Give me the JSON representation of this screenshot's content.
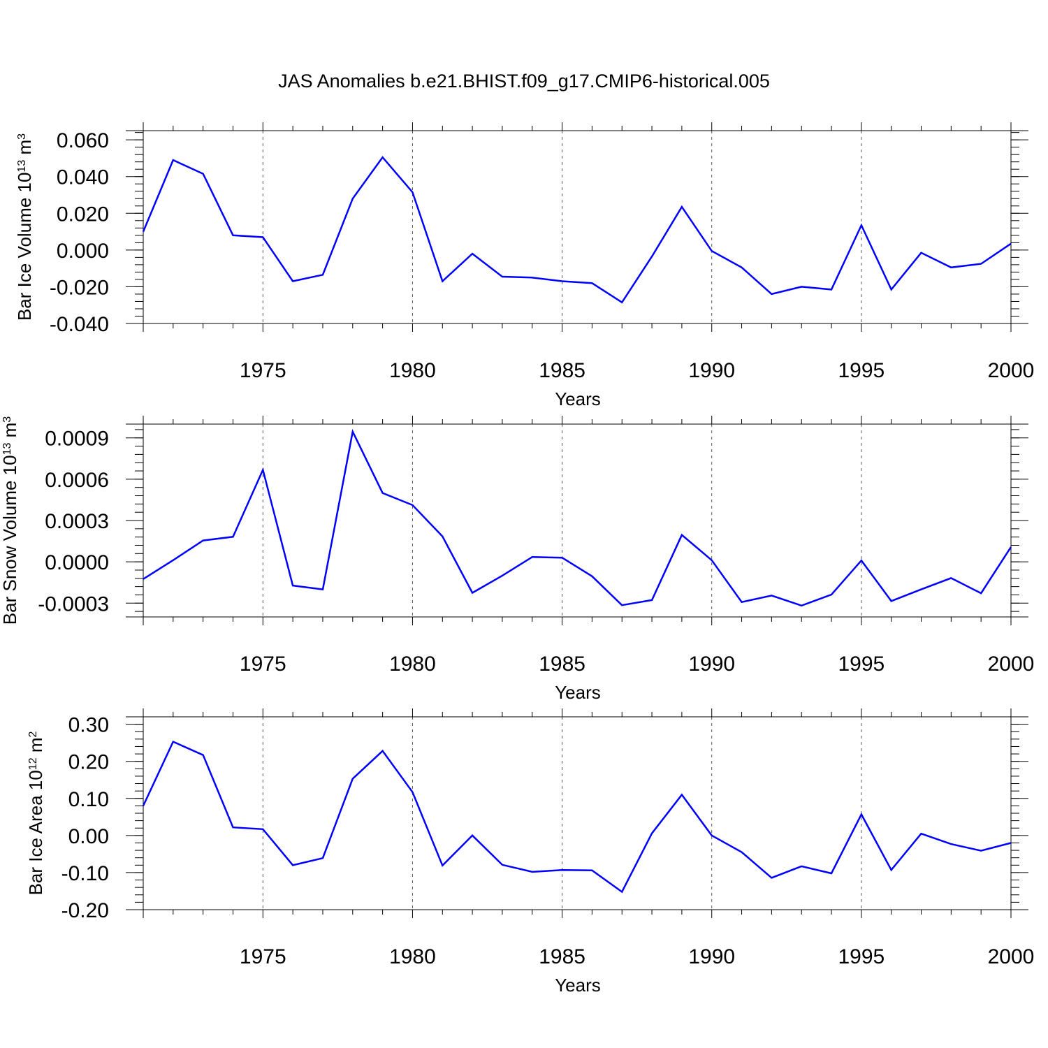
{
  "title": "JAS Anomalies b.e21.BHIST.f09_g17.CMIP6-historical.005",
  "colors": {
    "line": "#0000ff",
    "axis": "#000000",
    "grid": "#555555",
    "background": "#ffffff"
  },
  "chart_data": [
    {
      "type": "line",
      "title": "",
      "xlabel": "Years",
      "ylabel": {
        "text": "Bar Ice Volume 10",
        "exponent": "13",
        "unit": " m",
        "unit_exponent": "3"
      },
      "xlim": [
        1971,
        2000
      ],
      "ylim": [
        -0.04,
        0.065
      ],
      "y_ticks": [
        -0.04,
        -0.02,
        0.0,
        0.02,
        0.04,
        0.06
      ],
      "y_tick_labels": [
        "-0.040",
        "-0.020",
        "0.000",
        "0.020",
        "0.040",
        "0.060"
      ],
      "x_ticks": [
        1975,
        1980,
        1985,
        1990,
        1995,
        2000
      ],
      "x_tick_labels": [
        "1975",
        "1980",
        "1985",
        "1990",
        "1995",
        "2000"
      ],
      "x_grid": "vertical dashed at labeled years",
      "x": [
        1971,
        1972,
        1973,
        1974,
        1975,
        1976,
        1977,
        1978,
        1979,
        1980,
        1981,
        1982,
        1983,
        1984,
        1985,
        1986,
        1987,
        1988,
        1989,
        1990,
        1991,
        1992,
        1993,
        1994,
        1995,
        1996,
        1997,
        1998,
        1999,
        2000
      ],
      "series": [
        {
          "values": [
            0.01,
            0.049,
            0.0415,
            0.008,
            0.007,
            -0.017,
            -0.0135,
            0.028,
            0.0505,
            0.0315,
            -0.017,
            -0.002,
            -0.0145,
            -0.015,
            -0.017,
            -0.018,
            -0.0285,
            -0.0035,
            0.0235,
            -0.0005,
            -0.0095,
            -0.024,
            -0.02,
            -0.0215,
            0.0135,
            -0.0215,
            -0.0015,
            -0.0095,
            -0.0075,
            0.0035
          ]
        }
      ]
    },
    {
      "type": "line",
      "title": "",
      "xlabel": "Years",
      "ylabel": {
        "text": "Bar Snow Volume 10",
        "exponent": "13",
        "unit": " m",
        "unit_exponent": "3"
      },
      "xlim": [
        1971,
        2000
      ],
      "ylim": [
        -0.0004,
        0.001
      ],
      "y_ticks": [
        -0.0003,
        0.0,
        0.0003,
        0.0006,
        0.0009
      ],
      "y_tick_labels": [
        "-0.0003",
        "0.0000",
        "0.0003",
        "0.0006",
        "0.0009"
      ],
      "x_ticks": [
        1975,
        1980,
        1985,
        1990,
        1995,
        2000
      ],
      "x_tick_labels": [
        "1975",
        "1980",
        "1985",
        "1990",
        "1995",
        "2000"
      ],
      "x_grid": "vertical dashed at labeled years",
      "x": [
        1971,
        1972,
        1973,
        1974,
        1975,
        1976,
        1977,
        1978,
        1979,
        1980,
        1981,
        1982,
        1983,
        1984,
        1985,
        1986,
        1987,
        1988,
        1989,
        1990,
        1991,
        1992,
        1993,
        1994,
        1995,
        1996,
        1997,
        1998,
        1999,
        2000
      ],
      "series": [
        {
          "values": [
            -0.000125,
            1.2e-05,
            0.000155,
            0.000182,
            0.000668,
            -0.000172,
            -0.0002,
            0.000945,
            0.0005,
            0.000412,
            0.000185,
            -0.000225,
            -0.0001,
            3.5e-05,
            3e-05,
            -0.000105,
            -0.000315,
            -0.000278,
            0.000195,
            1.2e-05,
            -0.000292,
            -0.000245,
            -0.000318,
            -0.000238,
            1e-05,
            -0.000285,
            -0.0002,
            -0.000118,
            -0.000228,
            0.000108
          ]
        }
      ]
    },
    {
      "type": "line",
      "title": "",
      "xlabel": "Years",
      "ylabel": {
        "text": "Bar Ice Area 10",
        "exponent": "12",
        "unit": " m",
        "unit_exponent": "2"
      },
      "xlim": [
        1971,
        2000
      ],
      "ylim": [
        -0.2,
        0.32
      ],
      "y_ticks": [
        -0.2,
        -0.1,
        0.0,
        0.1,
        0.2,
        0.3
      ],
      "y_tick_labels": [
        "-0.20",
        "-0.10",
        "0.00",
        "0.10",
        "0.20",
        "0.30"
      ],
      "x_ticks": [
        1975,
        1980,
        1985,
        1990,
        1995,
        2000
      ],
      "x_tick_labels": [
        "1975",
        "1980",
        "1985",
        "1990",
        "1995",
        "2000"
      ],
      "x_grid": "vertical dashed at labeled years",
      "x": [
        1971,
        1972,
        1973,
        1974,
        1975,
        1976,
        1977,
        1978,
        1979,
        1980,
        1981,
        1982,
        1983,
        1984,
        1985,
        1986,
        1987,
        1988,
        1989,
        1990,
        1991,
        1992,
        1993,
        1994,
        1995,
        1996,
        1997,
        1998,
        1999,
        2000
      ],
      "series": [
        {
          "values": [
            0.08,
            0.253,
            0.217,
            0.022,
            0.017,
            -0.08,
            -0.061,
            0.153,
            0.228,
            0.117,
            -0.081,
            0.0,
            -0.079,
            -0.098,
            -0.093,
            -0.094,
            -0.152,
            0.006,
            0.11,
            0.0,
            -0.045,
            -0.114,
            -0.083,
            -0.102,
            0.057,
            -0.093,
            0.005,
            -0.023,
            -0.041,
            -0.02
          ]
        }
      ]
    }
  ]
}
